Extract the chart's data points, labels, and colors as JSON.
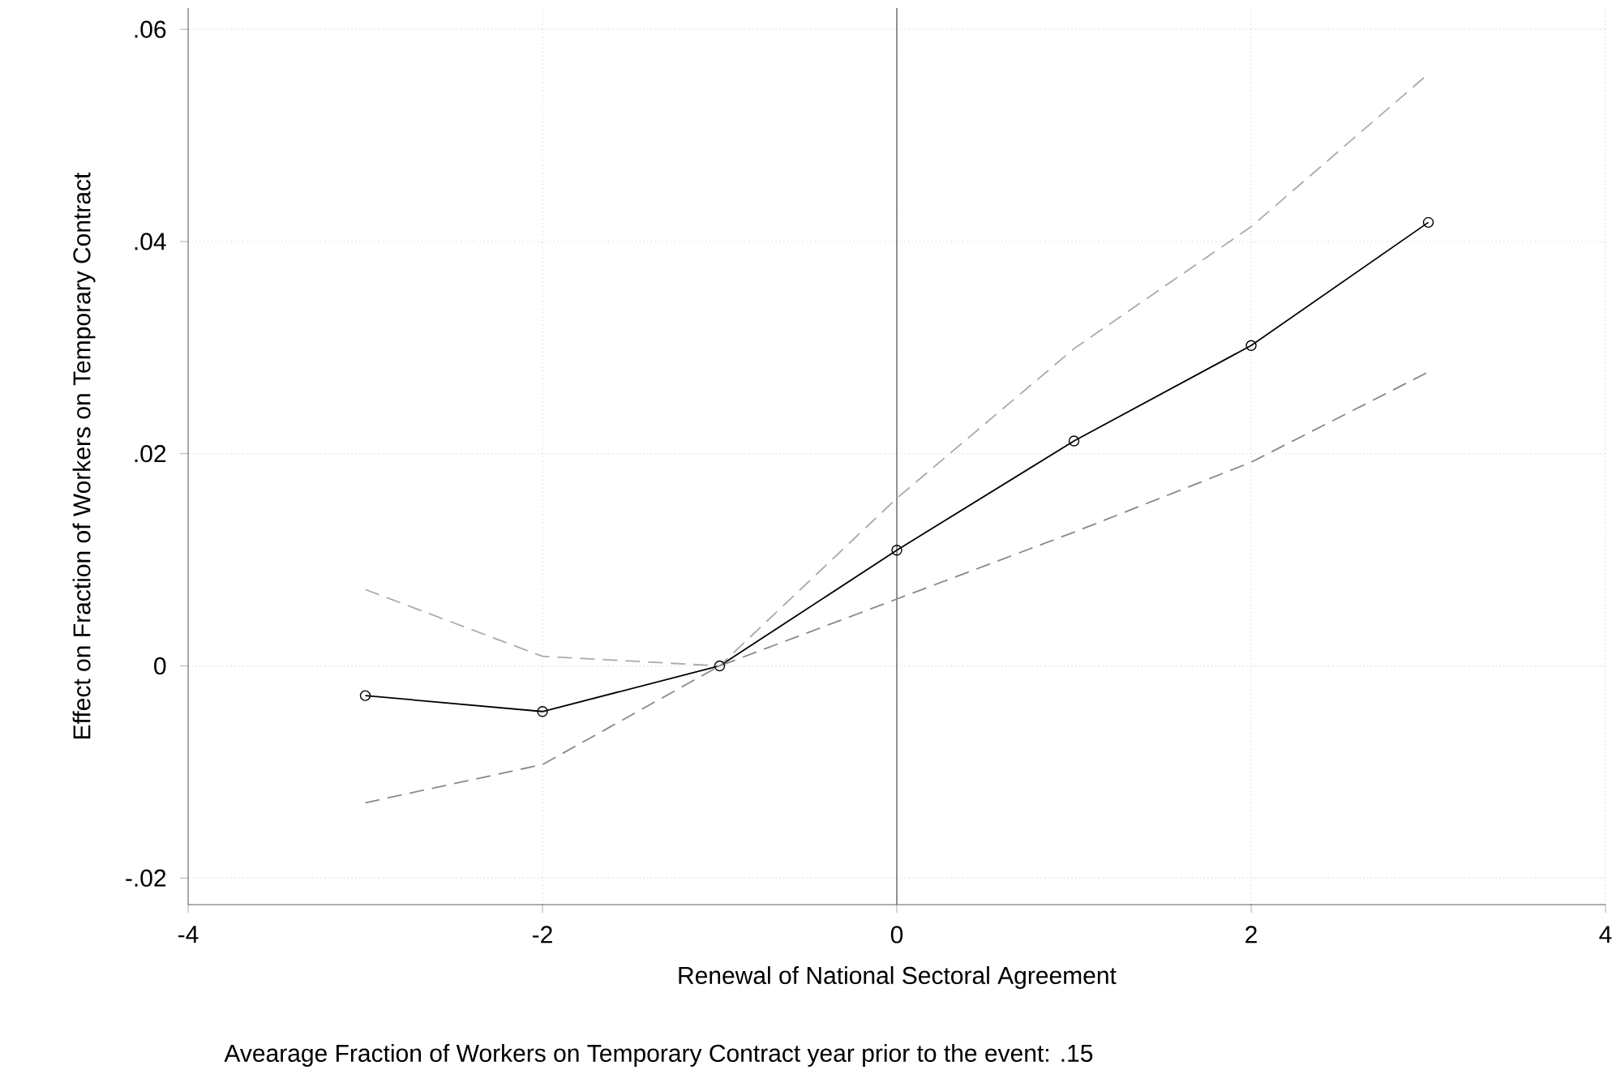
{
  "chart_data": {
    "type": "line",
    "xlabel": "Renewal of National Sectoral Agreement",
    "ylabel": "Effect on Fraction of Workers on Temporary Contract",
    "annotations": [
      "Avearage Fraction of Workers on Temporary Contract year prior to the event: .15"
    ],
    "x": [
      -3,
      -2,
      -1,
      0,
      1,
      2,
      3
    ],
    "series": [
      {
        "color": "#000000",
        "marker": "circle",
        "line_style": "solid",
        "values": [
          -0.0028,
          -0.0043,
          0,
          0.0109,
          0.0212,
          0.0302,
          0.0418
        ]
      },
      {
        "color": "#aaaaaa",
        "marker": "none",
        "line_style": "dashed",
        "values": [
          0.0072,
          0.0009,
          0,
          0.0158,
          0.0299,
          0.0414,
          0.0558
        ]
      },
      {
        "color": "#888888",
        "marker": "none",
        "line_style": "dashed",
        "values": [
          -0.0129,
          -0.0093,
          0,
          0.0063,
          0.0126,
          0.0192,
          0.0277
        ]
      }
    ],
    "xlim": [
      -4,
      4
    ],
    "ylim": [
      -0.0225,
      0.062
    ],
    "xticks": [
      -4,
      -2,
      0,
      2,
      4
    ],
    "yticks": [
      {
        "value": -0.02,
        "label": "-.02"
      },
      {
        "value": 0,
        "label": "0"
      },
      {
        "value": 0.02,
        "label": ".02"
      },
      {
        "value": 0.04,
        "label": ".04"
      },
      {
        "value": 0.06,
        "label": ".06"
      }
    ],
    "ref_lines": [
      {
        "axis": "x",
        "value": 0,
        "color": "#777777"
      }
    ],
    "grid": true
  }
}
